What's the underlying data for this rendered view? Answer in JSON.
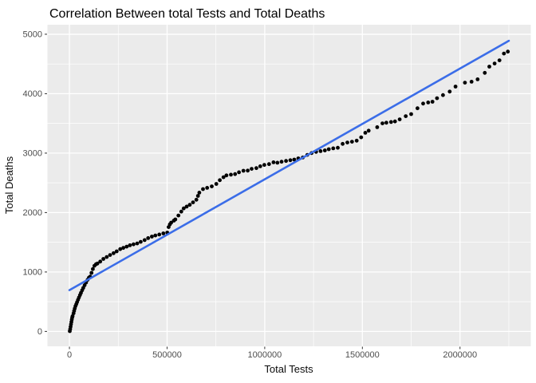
{
  "chart_data": {
    "type": "scatter",
    "title": "Correlation Between total Tests and Total Deaths",
    "xlabel": "Total Tests",
    "ylabel": "Total Deaths",
    "legend": "none",
    "grid": true,
    "xlim": [
      -112500,
      2362500
    ],
    "ylim": [
      -250,
      5160
    ],
    "x_tick_values": [
      0,
      500000,
      1000000,
      1500000,
      2000000
    ],
    "x_tick_labels": [
      "0",
      "500000",
      "1000000",
      "1500000",
      "2000000"
    ],
    "y_tick_values": [
      0,
      1000,
      2000,
      3000,
      4000,
      5000
    ],
    "y_tick_labels": [
      "0",
      "1000",
      "2000",
      "3000",
      "4000",
      "5000"
    ],
    "x_minor_gridlines": [
      250000,
      750000,
      1250000,
      1750000,
      2250000
    ],
    "y_minor_gridlines": [
      500,
      1500,
      2500,
      3500,
      4500
    ],
    "trend_line": {
      "type": "linear",
      "x1": 0,
      "y1": 695,
      "x2": 2250000,
      "y2": 4890
    },
    "points": [
      [
        2000,
        5
      ],
      [
        4000,
        40
      ],
      [
        6000,
        80
      ],
      [
        8000,
        120
      ],
      [
        10000,
        160
      ],
      [
        12000,
        200
      ],
      [
        14000,
        235
      ],
      [
        16000,
        258
      ],
      [
        21000,
        305
      ],
      [
        24000,
        345
      ],
      [
        27000,
        385
      ],
      [
        31000,
        425
      ],
      [
        35000,
        458
      ],
      [
        39000,
        492
      ],
      [
        44000,
        532
      ],
      [
        49000,
        572
      ],
      [
        54000,
        612
      ],
      [
        59000,
        650
      ],
      [
        65000,
        692
      ],
      [
        71000,
        732
      ],
      [
        78000,
        778
      ],
      [
        85000,
        822
      ],
      [
        93000,
        868
      ],
      [
        100000,
        905
      ],
      [
        106000,
        922
      ],
      [
        113000,
        985
      ],
      [
        120000,
        1050
      ],
      [
        128000,
        1105
      ],
      [
        136000,
        1130
      ],
      [
        143000,
        1142
      ],
      [
        158000,
        1175
      ],
      [
        174000,
        1220
      ],
      [
        191000,
        1252
      ],
      [
        208000,
        1286
      ],
      [
        226000,
        1316
      ],
      [
        242000,
        1347
      ],
      [
        260000,
        1385
      ],
      [
        276000,
        1405
      ],
      [
        293000,
        1427
      ],
      [
        310000,
        1450
      ],
      [
        328000,
        1465
      ],
      [
        347000,
        1481
      ],
      [
        365000,
        1507
      ],
      [
        385000,
        1537
      ],
      [
        403000,
        1570
      ],
      [
        422000,
        1596
      ],
      [
        440000,
        1615
      ],
      [
        460000,
        1631
      ],
      [
        481000,
        1650
      ],
      [
        501000,
        1663
      ],
      [
        508000,
        1755
      ],
      [
        514000,
        1800
      ],
      [
        521000,
        1831
      ],
      [
        535000,
        1864
      ],
      [
        542000,
        1885
      ],
      [
        558000,
        1950
      ],
      [
        573000,
        2016
      ],
      [
        585000,
        2070
      ],
      [
        600000,
        2101
      ],
      [
        616000,
        2130
      ],
      [
        633000,
        2172
      ],
      [
        650000,
        2216
      ],
      [
        658000,
        2280
      ],
      [
        665000,
        2336
      ],
      [
        684000,
        2395
      ],
      [
        705000,
        2416
      ],
      [
        729000,
        2440
      ],
      [
        752000,
        2482
      ],
      [
        770000,
        2545
      ],
      [
        789000,
        2594
      ],
      [
        804000,
        2625
      ],
      [
        827000,
        2638
      ],
      [
        848000,
        2647
      ],
      [
        868000,
        2678
      ],
      [
        891000,
        2703
      ],
      [
        913000,
        2706
      ],
      [
        933000,
        2735
      ],
      [
        957000,
        2748
      ],
      [
        977000,
        2779
      ],
      [
        998000,
        2801
      ],
      [
        1022000,
        2815
      ],
      [
        1045000,
        2846
      ],
      [
        1065000,
        2839
      ],
      [
        1086000,
        2855
      ],
      [
        1109000,
        2868
      ],
      [
        1131000,
        2881
      ],
      [
        1151000,
        2891
      ],
      [
        1172000,
        2912
      ],
      [
        1195000,
        2926
      ],
      [
        1218000,
        2970
      ],
      [
        1240000,
        3001
      ],
      [
        1263000,
        3022
      ],
      [
        1286000,
        3033
      ],
      [
        1308000,
        3046
      ],
      [
        1328000,
        3066
      ],
      [
        1351000,
        3081
      ],
      [
        1374000,
        3090
      ],
      [
        1399000,
        3156
      ],
      [
        1423000,
        3178
      ],
      [
        1447000,
        3192
      ],
      [
        1471000,
        3209
      ],
      [
        1494000,
        3266
      ],
      [
        1515000,
        3342
      ],
      [
        1532000,
        3377
      ],
      [
        1576000,
        3436
      ],
      [
        1603000,
        3501
      ],
      [
        1623000,
        3511
      ],
      [
        1647000,
        3524
      ],
      [
        1667000,
        3533
      ],
      [
        1691000,
        3568
      ],
      [
        1722000,
        3621
      ],
      [
        1750000,
        3657
      ],
      [
        1782000,
        3754
      ],
      [
        1811000,
        3834
      ],
      [
        1837000,
        3852
      ],
      [
        1859000,
        3865
      ],
      [
        1882000,
        3923
      ],
      [
        1913000,
        3976
      ],
      [
        1947000,
        4035
      ],
      [
        1977000,
        4120
      ],
      [
        2025000,
        4185
      ],
      [
        2059000,
        4201
      ],
      [
        2090000,
        4242
      ],
      [
        2127000,
        4350
      ],
      [
        2150000,
        4455
      ],
      [
        2177000,
        4508
      ],
      [
        2202000,
        4561
      ],
      [
        2225000,
        4676
      ],
      [
        2245000,
        4707
      ]
    ],
    "colors": {
      "background": "#FFFFFF",
      "panel_bg": "#EBEBEB",
      "grid": "#FFFFFF",
      "point": "#000000",
      "trend": "#3B6DE8",
      "tick_mark": "#333333",
      "tick_text": "#4D4D4D",
      "title_text": "#000000"
    }
  }
}
